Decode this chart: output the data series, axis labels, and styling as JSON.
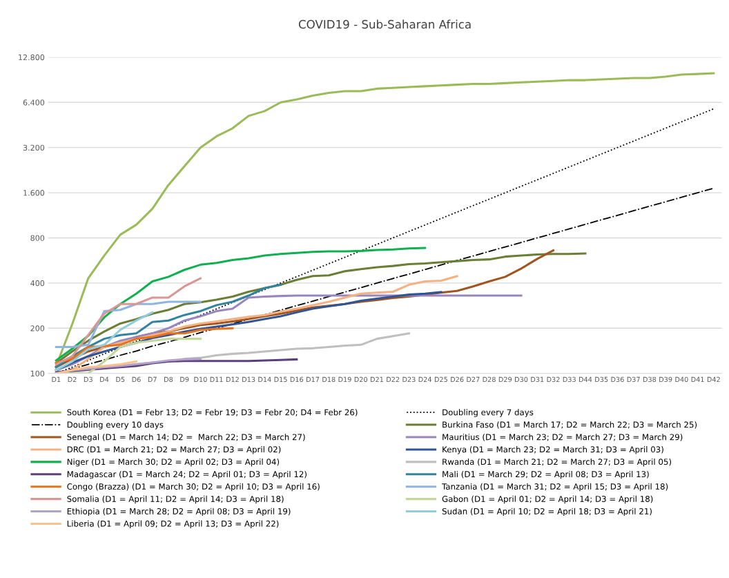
{
  "chart_data": {
    "type": "line",
    "title": "COVID19 - Sub-Saharan Africa",
    "categories": [
      "D1",
      "D2",
      "D3",
      "D4",
      "D5",
      "D6",
      "D7",
      "D8",
      "D9",
      "D10",
      "D11",
      "D12",
      "D13",
      "D14",
      "D15",
      "D16",
      "D17",
      "D18",
      "D19",
      "D20",
      "D21",
      "D22",
      "D23",
      "D24",
      "D25",
      "D26",
      "D27",
      "D28",
      "D29",
      "D30",
      "D31",
      "D32",
      "D33",
      "D44",
      "D35",
      "D36",
      "D37",
      "D38",
      "D39",
      "D40",
      "D41",
      "D42"
    ],
    "log": "y",
    "ylim": [
      100,
      12800
    ],
    "yticks": [
      100,
      200,
      400,
      800,
      {
        "value": 1600,
        "label": "1.600"
      },
      {
        "value": 3200,
        "label": "3.200"
      },
      {
        "value": 6400,
        "label": "6.400"
      },
      {
        "value": 12800,
        "label": "12.800"
      }
    ],
    "grid": "y",
    "legend": "bottom",
    "marker": "none",
    "series": [
      {
        "name": "South Korea (D1 = Febr 13; D2 = Febr 19; D3 = Febr 20; D4 = Febr 26)",
        "color": "#9bbb59",
        "values": [
          112,
          212,
          430,
          610,
          840,
          980,
          1250,
          1800,
          2400,
          3200,
          3800,
          4300,
          5200,
          5600,
          6400,
          6700,
          7100,
          7400,
          7600,
          7600,
          7900,
          8000,
          8100,
          8200,
          8300,
          8400,
          8500,
          8500,
          8600,
          8700,
          8800,
          8900,
          9000,
          9000,
          9100,
          9200,
          9300,
          9300,
          9500,
          9800,
          9900,
          10000
        ]
      },
      {
        "name": "Doubling every 7 days",
        "color": "#000000",
        "line_style": "dotted",
        "values": [
          100,
          110,
          122,
          135,
          149,
          164,
          181,
          200,
          221,
          244,
          269,
          297,
          328,
          362,
          400,
          441,
          487,
          538,
          594,
          656,
          724,
          800,
          883,
          975,
          1077,
          1189,
          1313,
          1449,
          1600,
          1767,
          1950,
          2153,
          2378,
          2625,
          2898,
          3200,
          3533,
          3901,
          4307,
          4755,
          5250,
          5797
        ]
      },
      {
        "name": "Doubling every 10 days",
        "color": "#000000",
        "line_style": "dashdot",
        "values": [
          100,
          107,
          115,
          123,
          132,
          141,
          152,
          162,
          174,
          187,
          200,
          214,
          230,
          246,
          264,
          283,
          303,
          325,
          348,
          373,
          400,
          429,
          459,
          492,
          528,
          566,
          606,
          650,
          696,
          746,
          800,
          857,
          919,
          985,
          1056,
          1131,
          1213,
          1300,
          1393,
          1493,
          1600,
          1715
        ]
      },
      {
        "name": "Burkina Faso (D1 = March 17; D2 = March 22; D3 = March 25)",
        "color": "#6a7f35",
        "values": [
          117,
          140,
          165,
          190,
          215,
          230,
          250,
          265,
          290,
          298,
          310,
          325,
          350,
          370,
          390,
          420,
          445,
          450,
          480,
          495,
          510,
          520,
          535,
          540,
          550,
          560,
          570,
          575,
          600,
          610,
          620,
          625,
          625,
          630,
          null,
          null,
          null,
          null,
          null,
          null,
          null,
          null
        ]
      },
      {
        "name": "Senegal (D1 = March 14; D2 =  March 22; D3 = March 27)",
        "color": "#a0561e",
        "values": [
          110,
          125,
          140,
          150,
          160,
          175,
          185,
          190,
          200,
          210,
          215,
          222,
          230,
          240,
          250,
          262,
          275,
          282,
          290,
          300,
          308,
          318,
          325,
          335,
          345,
          355,
          380,
          410,
          440,
          500,
          580,
          660,
          null,
          null,
          null,
          null,
          null,
          null,
          null,
          null,
          null,
          null
        ]
      },
      {
        "name": "Mauritius (D1 = March 23; D2 = March 27; D3 = March 29)",
        "color": "#9a86be",
        "values": [
          105,
          115,
          130,
          150,
          165,
          175,
          185,
          200,
          225,
          240,
          260,
          270,
          320,
          325,
          328,
          330,
          330,
          330,
          330,
          330,
          330,
          330,
          330,
          330,
          330,
          330,
          330,
          330,
          330,
          330,
          null,
          null,
          null,
          null,
          null,
          null,
          null,
          null,
          null,
          null,
          null,
          null
        ]
      },
      {
        "name": "DRC (D1 = March 21; D2 = March 27; D3 = April 02)",
        "color": "#f4b183",
        "values": [
          100,
          105,
          125,
          150,
          160,
          170,
          180,
          190,
          205,
          215,
          222,
          230,
          238,
          245,
          258,
          270,
          285,
          300,
          320,
          340,
          345,
          350,
          390,
          410,
          415,
          445,
          null,
          null,
          null,
          null,
          null,
          null,
          null,
          null,
          null,
          null,
          null,
          null,
          null,
          null,
          null,
          null
        ]
      },
      {
        "name": "Kenya (D1 = March 23; D2 = March 31; D3 = April 03)",
        "color": "#2f5597",
        "values": [
          105,
          118,
          130,
          140,
          150,
          160,
          172,
          180,
          190,
          198,
          205,
          212,
          220,
          230,
          240,
          255,
          270,
          280,
          290,
          305,
          315,
          325,
          335,
          340,
          348,
          null,
          null,
          null,
          null,
          null,
          null,
          null,
          null,
          null,
          null,
          null,
          null,
          null,
          null,
          null,
          null,
          null
        ]
      },
      {
        "name": "Niger (D1 = March 30; D2 = April 02; D3 = April 04)",
        "color": "#10b050",
        "values": [
          122,
          146,
          178,
          236,
          290,
          340,
          410,
          440,
          490,
          530,
          545,
          570,
          585,
          610,
          625,
          635,
          645,
          650,
          650,
          655,
          665,
          670,
          680,
          685,
          null,
          null,
          null,
          null,
          null,
          null,
          null,
          null,
          null,
          null,
          null,
          null,
          null,
          null,
          null,
          null,
          null,
          null
        ]
      },
      {
        "name": "Rwanda (D1 = March 21; D2 = March 27; D3 = April 05)",
        "color": "#bfbfbf",
        "values": [
          100,
          102,
          105,
          108,
          112,
          115,
          118,
          120,
          125,
          127,
          132,
          135,
          137,
          140,
          143,
          146,
          147,
          150,
          153,
          155,
          170,
          177,
          185,
          null,
          null,
          null,
          null,
          null,
          null,
          null,
          null,
          null,
          null,
          null,
          null,
          null,
          null,
          null,
          null,
          null,
          null,
          null
        ]
      },
      {
        "name": "Madagascar (D1 = March 24; D2 = April 01; D3 = April 12)",
        "color": "#5b3f7c",
        "values": [
          102,
          104,
          106,
          108,
          110,
          112,
          117,
          120,
          121,
          121,
          121,
          121,
          121,
          122,
          123,
          124,
          null,
          null,
          null,
          null,
          null,
          null,
          null,
          null,
          null,
          null,
          null,
          null,
          null,
          null,
          null,
          null,
          null,
          null,
          null,
          null,
          null,
          null,
          null,
          null,
          null,
          null
        ]
      },
      {
        "name": "Mali (D1 = March 29; D2 = April 08; D3 = April 13)",
        "color": "#31849b",
        "values": [
          110,
          130,
          150,
          170,
          180,
          185,
          220,
          225,
          245,
          260,
          285,
          300,
          330,
          370,
          390,
          null,
          null,
          null,
          null,
          null,
          null,
          null,
          null,
          null,
          null,
          null,
          null,
          null,
          null,
          null,
          null,
          null,
          null,
          null,
          null,
          null,
          null,
          null,
          null,
          null,
          null,
          null
        ]
      },
      {
        "name": "Congo (Brazza) (D1 = March 30; D2 = April 10; D3 = April 16)",
        "color": "#e8711c",
        "values": [
          118,
          125,
          150,
          152,
          155,
          170,
          175,
          185,
          185,
          195,
          198,
          200,
          null,
          null,
          null,
          null,
          null,
          null,
          null,
          null,
          null,
          null,
          null,
          null,
          null,
          null,
          null,
          null,
          null,
          null,
          null,
          null,
          null,
          null,
          null,
          null,
          null,
          null,
          null,
          null,
          null,
          null
        ]
      },
      {
        "name": "Tanzania (D1 = March 31; D2 = April 15; D3 = April 18)",
        "color": "#8eb4e3",
        "values": [
          150,
          150,
          155,
          260,
          265,
          290,
          290,
          300,
          300,
          300,
          null,
          null,
          null,
          null,
          null,
          null,
          null,
          null,
          null,
          null,
          null,
          null,
          null,
          null,
          null,
          null,
          null,
          null,
          null,
          null,
          null,
          null,
          null,
          null,
          null,
          null,
          null,
          null,
          null,
          null,
          null,
          null
        ]
      },
      {
        "name": "Somalia (D1 = April 11; D2 = April 14; D3 = April 18)",
        "color": "#da9694",
        "values": [
          115,
          130,
          180,
          250,
          290,
          290,
          320,
          320,
          380,
          430,
          null,
          null,
          null,
          null,
          null,
          null,
          null,
          null,
          null,
          null,
          null,
          null,
          null,
          null,
          null,
          null,
          null,
          null,
          null,
          null,
          null,
          null,
          null,
          null,
          null,
          null,
          null,
          null,
          null,
          null,
          null,
          null
        ]
      },
      {
        "name": "Gabon (D1 = April 01; D2 = April 14; D3 = April 18)",
        "color": "#c3d69b",
        "values": [
          100,
          100,
          100,
          120,
          150,
          160,
          165,
          170,
          170,
          170,
          null,
          null,
          null,
          null,
          null,
          null,
          null,
          null,
          null,
          null,
          null,
          null,
          null,
          null,
          null,
          null,
          null,
          null,
          null,
          null,
          null,
          null,
          null,
          null,
          null,
          null,
          null,
          null,
          null,
          null,
          null,
          null
        ]
      },
      {
        "name": "Ethiopia (D1 = March 28; D2 = April 08; D3 = April 19)",
        "color": "#b3a2c7",
        "values": [
          100,
          105,
          107,
          110,
          112,
          115,
          118,
          122,
          124,
          125,
          null,
          null,
          null,
          null,
          null,
          null,
          null,
          null,
          null,
          null,
          null,
          null,
          null,
          null,
          null,
          null,
          null,
          null,
          null,
          null,
          null,
          null,
          null,
          null,
          null,
          null,
          null,
          null,
          null,
          null,
          null,
          null
        ]
      },
      {
        "name": "Sudan (D1 = April 10; D2 = April 18; D3 = April 21)",
        "color": "#92cddc",
        "values": [
          105,
          120,
          145,
          155,
          195,
          225,
          255,
          null,
          null,
          null,
          null,
          null,
          null,
          null,
          null,
          null,
          null,
          null,
          null,
          null,
          null,
          null,
          null,
          null,
          null,
          null,
          null,
          null,
          null,
          null,
          null,
          null,
          null,
          null,
          null,
          null,
          null,
          null,
          null,
          null,
          null,
          null
        ]
      },
      {
        "name": "Liberia (D1 = April 09; D2 = April 13; D3 = April 22)",
        "color": "#fac090",
        "values": [
          100,
          105,
          110,
          112,
          115,
          120,
          null,
          null,
          null,
          null,
          null,
          null,
          null,
          null,
          null,
          null,
          null,
          null,
          null,
          null,
          null,
          null,
          null,
          null,
          null,
          null,
          null,
          null,
          null,
          null,
          null,
          null,
          null,
          null,
          null,
          null,
          null,
          null,
          null,
          null,
          null,
          null
        ]
      }
    ]
  }
}
